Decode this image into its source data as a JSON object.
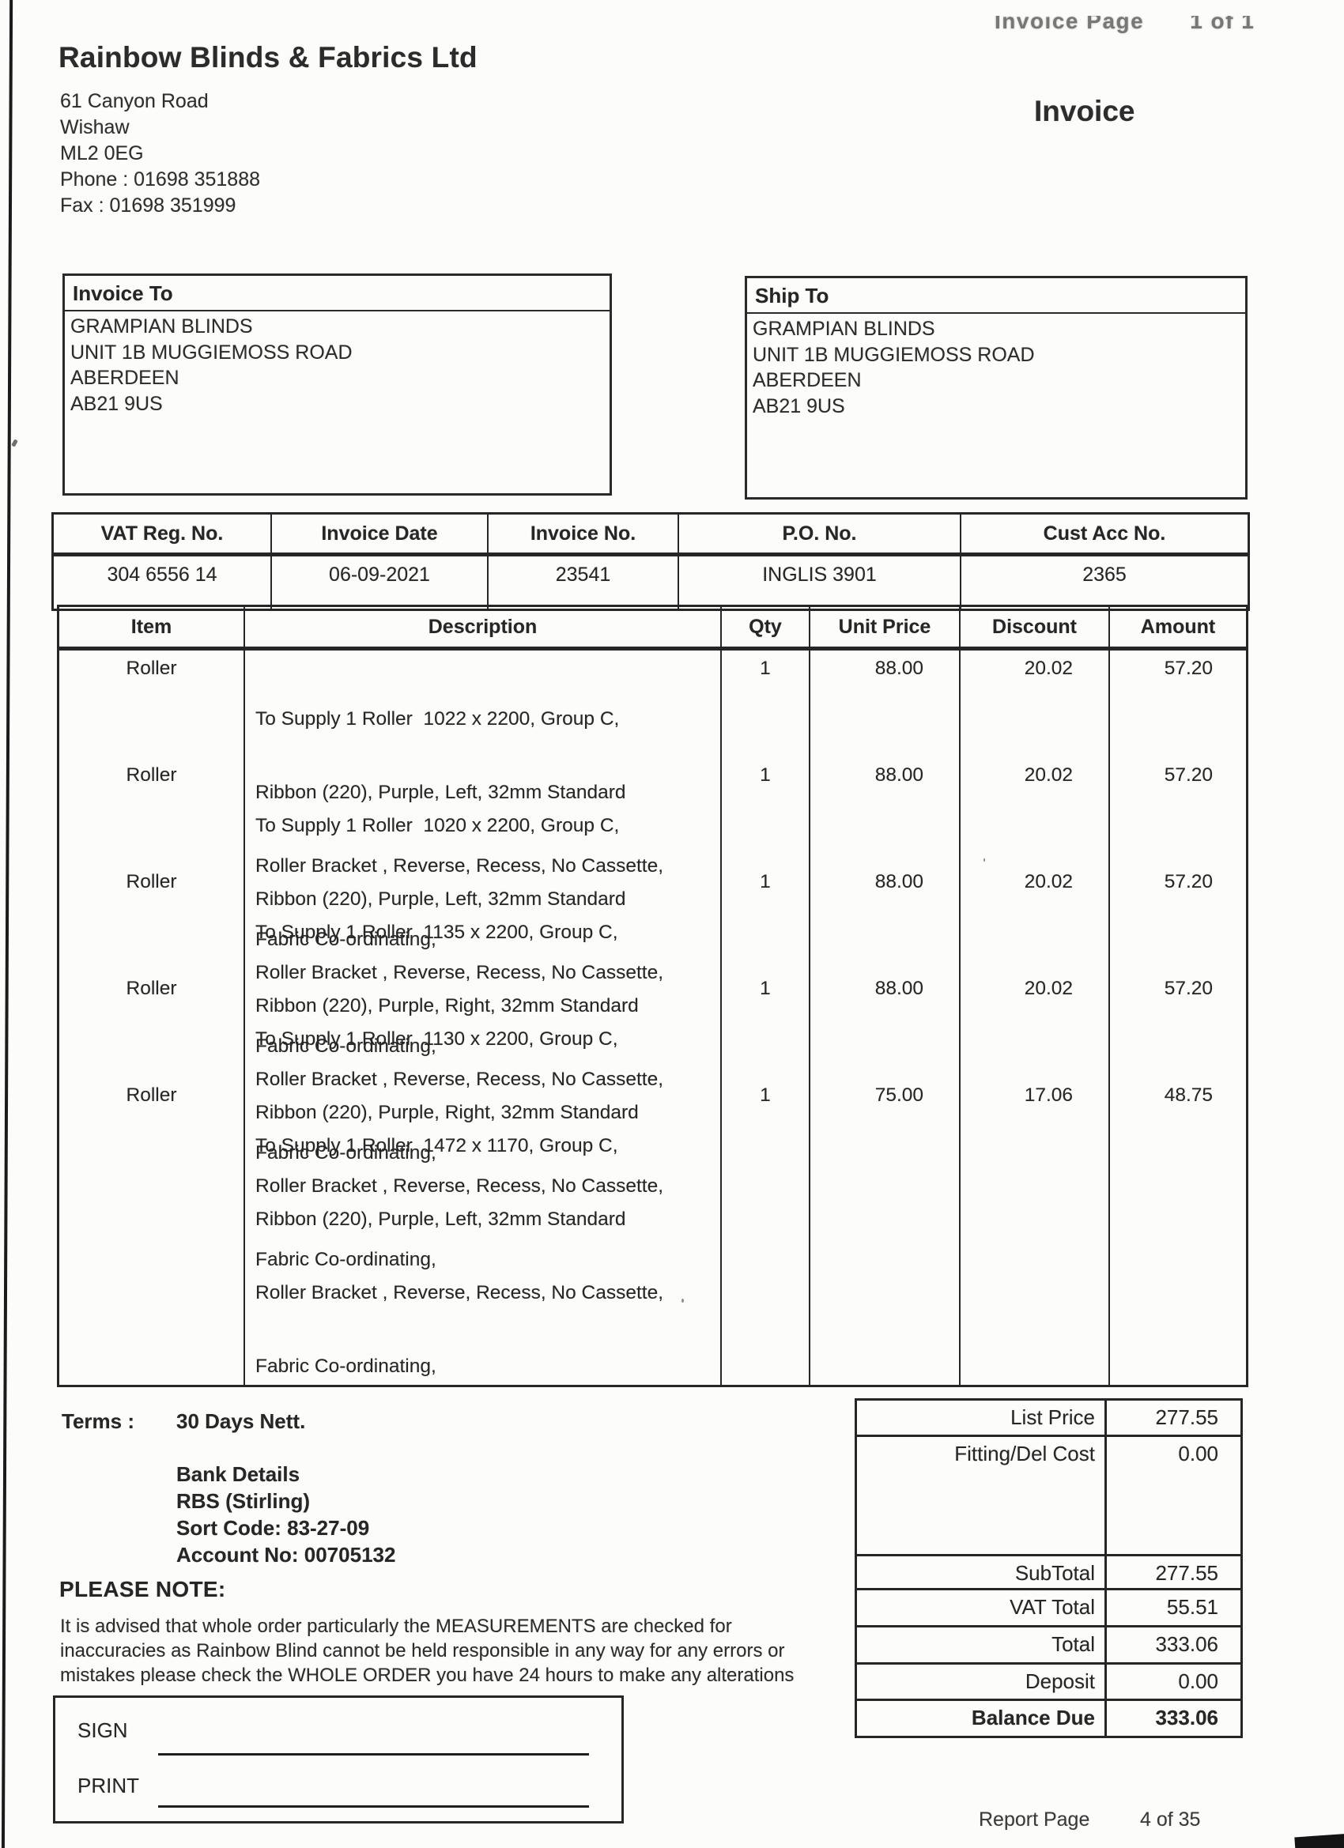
{
  "header": {
    "faded_label": "Invoice Page",
    "faded_value": "1 of 1",
    "invoice_title": "Invoice"
  },
  "company": {
    "name": "Rainbow Blinds & Fabrics Ltd",
    "address_lines": [
      "61 Canyon Road",
      "Wishaw",
      "ML2 0EG"
    ],
    "phone": "Phone : 01698 351888",
    "fax": "Fax : 01698 351999"
  },
  "invoice_to": {
    "label": "Invoice To",
    "lines": [
      "GRAMPIAN BLINDS",
      "UNIT 1B MUGGIEMOSS ROAD",
      "ABERDEEN",
      "AB21 9US"
    ]
  },
  "ship_to": {
    "label": "Ship To",
    "lines": [
      "GRAMPIAN BLINDS",
      "UNIT 1B MUGGIEMOSS ROAD",
      "ABERDEEN",
      "AB21 9US"
    ]
  },
  "meta_table": {
    "headers": [
      "VAT Reg. No.",
      "Invoice Date",
      "Invoice No.",
      "P.O. No.",
      "Cust Acc No."
    ],
    "values": [
      "304 6556 14",
      "06-09-2021",
      "23541",
      "INGLIS 3901",
      "2365"
    ]
  },
  "items_table": {
    "headers": [
      "Item",
      "Description",
      "Qty",
      "Unit Price",
      "Discount",
      "Amount"
    ],
    "rows": [
      {
        "item": "Roller",
        "description_lines": [
          "To Supply 1 Roller  1022 x 2200, Group C,",
          "Ribbon (220), Purple, Left, 32mm Standard",
          "Roller Bracket , Reverse, Recess, No Cassette,",
          "Fabric Co-ordinating,"
        ],
        "qty": "1",
        "unit_price": "88.00",
        "discount": "20.02",
        "amount": "57.20"
      },
      {
        "item": "Roller",
        "description_lines": [
          "To Supply 1 Roller  1020 x 2200, Group C,",
          "Ribbon (220), Purple, Left, 32mm Standard",
          "Roller Bracket , Reverse, Recess, No Cassette,",
          "Fabric Co-ordinating,"
        ],
        "qty": "1",
        "unit_price": "88.00",
        "discount": "20.02",
        "amount": "57.20"
      },
      {
        "item": "Roller",
        "description_lines": [
          "To Supply 1 Roller  1135 x 2200, Group C,",
          "Ribbon (220), Purple, Right, 32mm Standard",
          "Roller Bracket , Reverse, Recess, No Cassette,",
          "Fabric Co-ordinating,"
        ],
        "qty": "1",
        "unit_price": "88.00",
        "discount": "20.02",
        "amount": "57.20"
      },
      {
        "item": "Roller",
        "description_lines": [
          "To Supply 1 Roller  1130 x 2200, Group C,",
          "Ribbon (220), Purple, Right, 32mm Standard",
          "Roller Bracket , Reverse, Recess, No Cassette,",
          "Fabric Co-ordinating,"
        ],
        "qty": "1",
        "unit_price": "88.00",
        "discount": "20.02",
        "amount": "57.20"
      },
      {
        "item": "Roller",
        "description_lines": [
          "To Supply 1 Roller  1472 x 1170, Group C,",
          "Ribbon (220), Purple, Left, 32mm Standard",
          "Roller Bracket , Reverse, Recess, No Cassette,",
          "Fabric Co-ordinating,"
        ],
        "qty": "1",
        "unit_price": "75.00",
        "discount": "17.06",
        "amount": "48.75"
      }
    ]
  },
  "terms": {
    "label": "Terms :",
    "value": "30 Days Nett.",
    "bank_lines": [
      "Bank Details",
      "RBS (Stirling)",
      "Sort Code: 83-27-09",
      "Account No: 00705132"
    ]
  },
  "note": {
    "title": "PLEASE NOTE:",
    "lines": [
      "It is advised that whole order particularly the MEASUREMENTS are checked for",
      "inaccuracies as Rainbow Blind cannot be held responsible in any way for any errors or",
      "mistakes please check the WHOLE ORDER you have 24 hours to make any alterations"
    ]
  },
  "totals": {
    "rows": [
      {
        "label": "List Price",
        "value": "277.55"
      },
      {
        "label": "Fitting/Del Cost",
        "value": "0.00"
      },
      {
        "label": "SubTotal",
        "value": "277.55"
      },
      {
        "label": "VAT Total",
        "value": "55.51"
      },
      {
        "label": "Total",
        "value": "333.06"
      },
      {
        "label": "Deposit",
        "value": "0.00"
      },
      {
        "label": "Balance Due",
        "value": "333.06"
      }
    ]
  },
  "sign_box": {
    "sign_label": "SIGN",
    "print_label": "PRINT"
  },
  "footer": {
    "report_label": "Report Page",
    "report_value": "4 of 35"
  },
  "colors": {
    "ink": "#262626",
    "paper": "#fcfcfa"
  }
}
